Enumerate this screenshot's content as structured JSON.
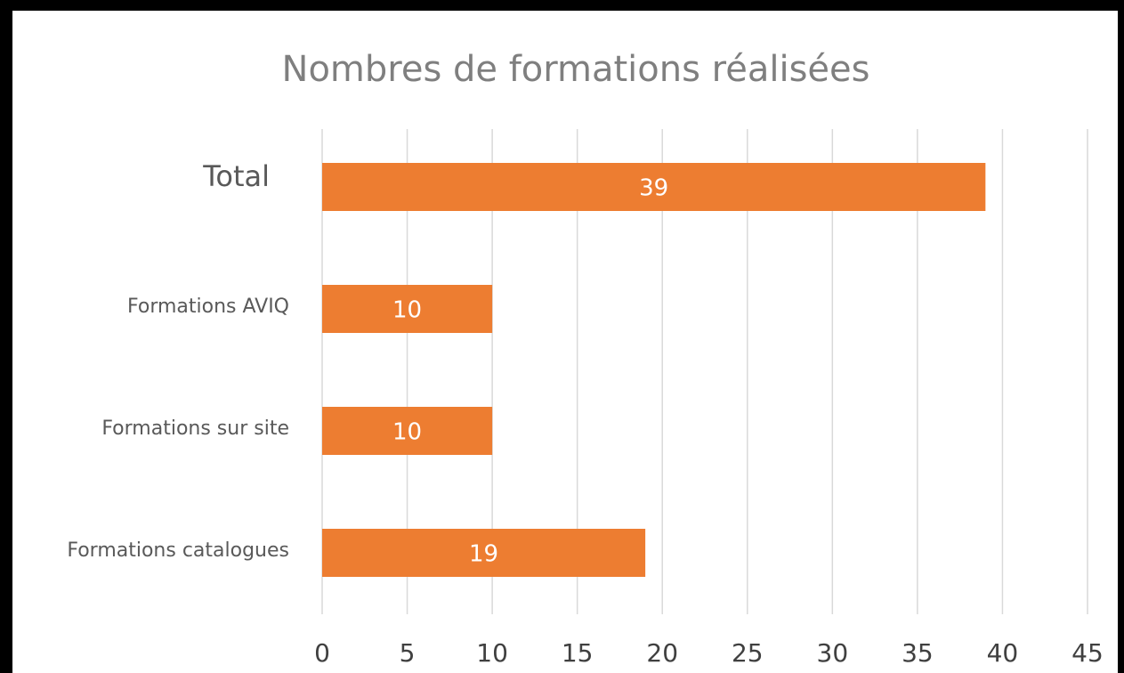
{
  "chart_data": {
    "type": "bar",
    "orientation": "horizontal",
    "title": "Nombres de formations réalisées",
    "categories": [
      "Total",
      "Formations AVIQ",
      "Formations sur site",
      "Formations catalogues"
    ],
    "values": [
      39,
      10,
      10,
      19
    ],
    "color": "#ed7d31",
    "xlim": [
      0,
      45
    ],
    "xticks": [
      0,
      5,
      10,
      15,
      20,
      25,
      30,
      35,
      40,
      45
    ],
    "grid": true
  }
}
